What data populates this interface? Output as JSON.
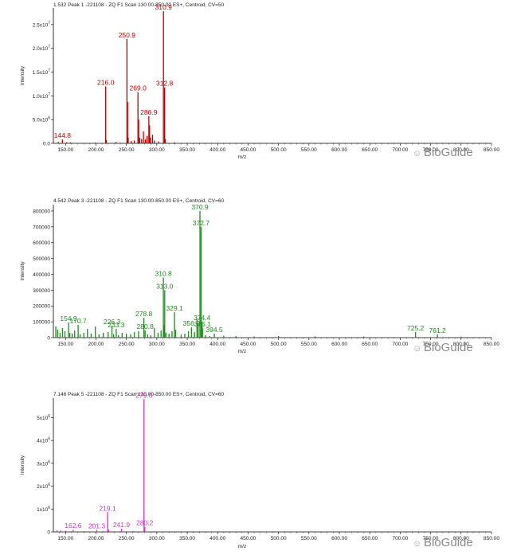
{
  "watermark": {
    "text": "BioGuide",
    "icon": "wechat-bubble-icon"
  },
  "chart_data": [
    {
      "type": "bar",
      "header": "1.532 Peak 1 -221108 - ZQ F1 Scan 130.00-850.00 ES+, Centroid, CV=50",
      "xlabel": "m/z",
      "ylabel": "Intensity",
      "xlim": [
        130,
        850
      ],
      "ylim": [
        0,
        28500000
      ],
      "color": "#c00000",
      "x_ticks": [
        "150.00",
        "200.00",
        "250.00",
        "300.00",
        "350.00",
        "400.00",
        "450.00",
        "500.00",
        "550.00",
        "600.00",
        "650.00",
        "700.00",
        "750.00",
        "800.00",
        "850.00"
      ],
      "y_ticks": [
        {
          "value": 0,
          "label": "0.0"
        },
        {
          "value": 5000000,
          "label": "5.0x10",
          "exp": "6"
        },
        {
          "value": 10000000,
          "label": "1.0x10",
          "exp": "7"
        },
        {
          "value": 15000000,
          "label": "1.5x10",
          "exp": "7"
        },
        {
          "value": 20000000,
          "label": "2.0x10",
          "exp": "7"
        },
        {
          "value": 25000000,
          "label": "2.5x10",
          "exp": "7"
        }
      ],
      "peaks": [
        {
          "x": 138.0,
          "y": 300000
        },
        {
          "x": 144.8,
          "y": 800000,
          "label": "144.8"
        },
        {
          "x": 152.0,
          "y": 250000
        },
        {
          "x": 158.0,
          "y": 200000
        },
        {
          "x": 199.0,
          "y": 150000
        },
        {
          "x": 216.0,
          "y": 12000000,
          "label": "216.0"
        },
        {
          "x": 217.0,
          "y": 700000
        },
        {
          "x": 233.0,
          "y": 300000
        },
        {
          "x": 250.9,
          "y": 22000000,
          "label": "250.9"
        },
        {
          "x": 251.9,
          "y": 8700000
        },
        {
          "x": 253.0,
          "y": 1200000
        },
        {
          "x": 258.0,
          "y": 500000
        },
        {
          "x": 263.0,
          "y": 600000
        },
        {
          "x": 269.0,
          "y": 10800000,
          "label": "269.0"
        },
        {
          "x": 270.1,
          "y": 5000000
        },
        {
          "x": 272.0,
          "y": 1200000
        },
        {
          "x": 275.0,
          "y": 900000
        },
        {
          "x": 278.0,
          "y": 2500000
        },
        {
          "x": 281.0,
          "y": 800000
        },
        {
          "x": 284.0,
          "y": 1600000
        },
        {
          "x": 286.9,
          "y": 5700000,
          "label": "286.9"
        },
        {
          "x": 288.0,
          "y": 3800000
        },
        {
          "x": 290.0,
          "y": 1200000
        },
        {
          "x": 293.0,
          "y": 1800000
        },
        {
          "x": 296.0,
          "y": 600000
        },
        {
          "x": 303.0,
          "y": 400000
        },
        {
          "x": 310.9,
          "y": 27800000,
          "label": "310.9"
        },
        {
          "x": 312.8,
          "y": 11800000,
          "label": "312.8"
        },
        {
          "x": 314.0,
          "y": 900000
        },
        {
          "x": 329.0,
          "y": 200000
        }
      ]
    },
    {
      "type": "bar",
      "header": "4.542 Peak 3 -221108 - ZQ F1 Scan 130.00-850.00 ES+, Centroid, CV=60",
      "xlabel": "m/z",
      "ylabel": "Intensity",
      "xlim": [
        130,
        850
      ],
      "ylim": [
        0,
        840000
      ],
      "color": "#218a21",
      "x_ticks": [
        "150.00",
        "200.00",
        "250.00",
        "300.00",
        "350.00",
        "400.00",
        "450.00",
        "500.00",
        "550.00",
        "600.00",
        "650.00",
        "700.00",
        "750.00",
        "800.00",
        "850.00"
      ],
      "y_ticks": [
        {
          "value": 0,
          "label": "0"
        },
        {
          "value": 100000,
          "label": "100000"
        },
        {
          "value": 200000,
          "label": "200000"
        },
        {
          "value": 300000,
          "label": "300000"
        },
        {
          "value": 400000,
          "label": "400000"
        },
        {
          "value": 500000,
          "label": "500000"
        },
        {
          "value": 600000,
          "label": "600000"
        },
        {
          "value": 700000,
          "label": "700000"
        },
        {
          "value": 800000,
          "label": "800000"
        }
      ],
      "peaks": [
        {
          "x": 134.0,
          "y": 70000
        },
        {
          "x": 137.0,
          "y": 50000
        },
        {
          "x": 141.0,
          "y": 30000
        },
        {
          "x": 145.0,
          "y": 60000
        },
        {
          "x": 149.0,
          "y": 40000
        },
        {
          "x": 154.9,
          "y": 95000,
          "label": "154.9"
        },
        {
          "x": 157.0,
          "y": 30000
        },
        {
          "x": 161.0,
          "y": 25000
        },
        {
          "x": 165.0,
          "y": 45000
        },
        {
          "x": 170.7,
          "y": 80000,
          "label": "170.7"
        },
        {
          "x": 174.0,
          "y": 20000
        },
        {
          "x": 180.0,
          "y": 30000
        },
        {
          "x": 186.0,
          "y": 55000
        },
        {
          "x": 192.0,
          "y": 25000
        },
        {
          "x": 199.0,
          "y": 70000
        },
        {
          "x": 205.0,
          "y": 20000
        },
        {
          "x": 212.0,
          "y": 30000
        },
        {
          "x": 220.0,
          "y": 35000
        },
        {
          "x": 226.3,
          "y": 75000,
          "label": "226.3"
        },
        {
          "x": 229.0,
          "y": 20000
        },
        {
          "x": 233.3,
          "y": 55000,
          "label": "233.3"
        },
        {
          "x": 237.0,
          "y": 15000
        },
        {
          "x": 243.0,
          "y": 30000
        },
        {
          "x": 250.0,
          "y": 25000
        },
        {
          "x": 257.0,
          "y": 20000
        },
        {
          "x": 263.0,
          "y": 35000
        },
        {
          "x": 270.0,
          "y": 40000
        },
        {
          "x": 278.8,
          "y": 125000,
          "label": "278.8"
        },
        {
          "x": 280.8,
          "y": 45000,
          "label": "280.8"
        },
        {
          "x": 285.0,
          "y": 20000
        },
        {
          "x": 290.0,
          "y": 15000
        },
        {
          "x": 296.0,
          "y": 60000
        },
        {
          "x": 302.0,
          "y": 30000
        },
        {
          "x": 307.0,
          "y": 45000
        },
        {
          "x": 310.8,
          "y": 380000,
          "label": "310.8"
        },
        {
          "x": 312.0,
          "y": 80000
        },
        {
          "x": 313.0,
          "y": 300000,
          "label": "313.0"
        },
        {
          "x": 315.0,
          "y": 30000
        },
        {
          "x": 320.0,
          "y": 25000
        },
        {
          "x": 325.0,
          "y": 40000
        },
        {
          "x": 329.1,
          "y": 160000,
          "label": "329.1"
        },
        {
          "x": 331.0,
          "y": 50000
        },
        {
          "x": 340.0,
          "y": 20000
        },
        {
          "x": 346.0,
          "y": 25000
        },
        {
          "x": 352.0,
          "y": 40000
        },
        {
          "x": 356.9,
          "y": 65000,
          "label": "356.9"
        },
        {
          "x": 362.0,
          "y": 35000
        },
        {
          "x": 366.0,
          "y": 120000
        },
        {
          "x": 368.0,
          "y": 90000
        },
        {
          "x": 370.9,
          "y": 800000,
          "label": "370.9"
        },
        {
          "x": 372.7,
          "y": 700000,
          "label": "372.7"
        },
        {
          "x": 374.4,
          "y": 100000,
          "label": "374.4"
        },
        {
          "x": 375.1,
          "y": 60000,
          "label": "375.1"
        },
        {
          "x": 380.0,
          "y": 15000
        },
        {
          "x": 387.0,
          "y": 10000
        },
        {
          "x": 394.5,
          "y": 25000,
          "label": "394.5"
        },
        {
          "x": 410.0,
          "y": 12000
        },
        {
          "x": 430.0,
          "y": 10000
        },
        {
          "x": 460.0,
          "y": 8000
        },
        {
          "x": 500.0,
          "y": 10000
        },
        {
          "x": 560.0,
          "y": 8000
        },
        {
          "x": 640.0,
          "y": 7000
        },
        {
          "x": 725.2,
          "y": 35000,
          "label": "725.2"
        },
        {
          "x": 761.2,
          "y": 20000,
          "label": "761.2"
        },
        {
          "x": 800.0,
          "y": 6000
        }
      ]
    },
    {
      "type": "bar",
      "header": "7.146 Peak 5 -221108 - ZQ F1 Scan 130.00-850.00 ES+, Centroid, CV=60",
      "xlabel": "m/z",
      "ylabel": "Intensity",
      "xlim": [
        130,
        850
      ],
      "ylim": [
        0,
        5850000
      ],
      "color": "#cc33cc",
      "x_ticks": [
        "150.00",
        "200.00",
        "250.00",
        "300.00",
        "350.00",
        "400.00",
        "450.00",
        "500.00",
        "550.00",
        "600.00",
        "650.00",
        "700.00",
        "750.00",
        "800.00",
        "850.00"
      ],
      "y_ticks": [
        {
          "value": 0,
          "label": "0"
        },
        {
          "value": 1000000,
          "label": "1x10",
          "exp": "6"
        },
        {
          "value": 2000000,
          "label": "2x10",
          "exp": "6"
        },
        {
          "value": 3000000,
          "label": "3x10",
          "exp": "6"
        },
        {
          "value": 4000000,
          "label": "4x10",
          "exp": "6"
        },
        {
          "value": 5000000,
          "label": "5x10",
          "exp": "6"
        }
      ],
      "peaks": [
        {
          "x": 136.0,
          "y": 80000
        },
        {
          "x": 142.0,
          "y": 60000
        },
        {
          "x": 150.0,
          "y": 50000
        },
        {
          "x": 162.6,
          "y": 100000,
          "label": "162.6"
        },
        {
          "x": 180.0,
          "y": 30000
        },
        {
          "x": 201.3,
          "y": 90000,
          "label": "201.3"
        },
        {
          "x": 212.0,
          "y": 40000
        },
        {
          "x": 219.1,
          "y": 860000,
          "label": "219.1"
        },
        {
          "x": 221.0,
          "y": 100000
        },
        {
          "x": 241.9,
          "y": 140000,
          "label": "241.9"
        },
        {
          "x": 262.0,
          "y": 40000
        },
        {
          "x": 279.0,
          "y": 5800000,
          "label": "279.0"
        },
        {
          "x": 280.2,
          "y": 230000,
          "label": "280.2"
        },
        {
          "x": 295.0,
          "y": 30000
        }
      ]
    }
  ]
}
